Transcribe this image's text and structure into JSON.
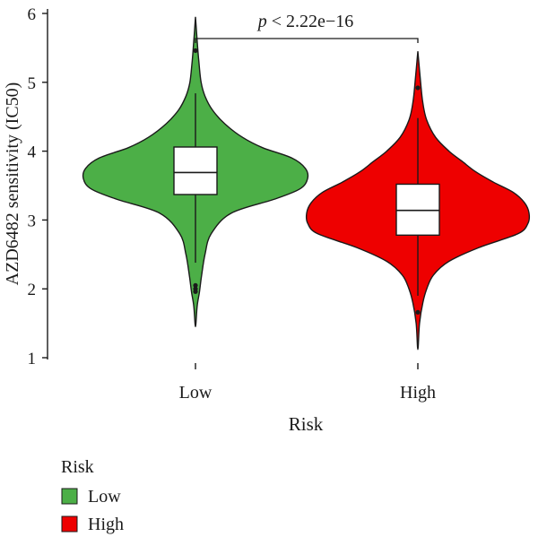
{
  "chart_data": {
    "type": "violin",
    "xlabel": "Risk",
    "ylabel": "AZD6482 sensitivity (IC50)",
    "ylim": [
      1,
      6
    ],
    "y_ticks": [
      1,
      2,
      3,
      4,
      5,
      6
    ],
    "categories": [
      "Low",
      "High"
    ],
    "annotation": {
      "p_prefix": "p",
      "p_rest": " < 2.22e−16"
    },
    "legend": {
      "title": "Risk",
      "position": "bottom-left",
      "entries": [
        "Low",
        "High"
      ]
    },
    "groups": [
      {
        "name": "Low",
        "color": "#4caf47",
        "box": {
          "q1": 3.37,
          "median": 3.69,
          "q3": 4.06,
          "whisker_low": 2.38,
          "whisker_high": 4.84
        },
        "outliers": [
          5.46,
          2.05,
          2.0,
          1.96
        ],
        "violin_range": [
          1.45,
          5.95
        ],
        "violin_profile": [
          [
            1.45,
            0.0
          ],
          [
            1.75,
            0.015
          ],
          [
            1.95,
            0.035
          ],
          [
            2.2,
            0.055
          ],
          [
            2.5,
            0.085
          ],
          [
            2.8,
            0.14
          ],
          [
            3.1,
            0.32
          ],
          [
            3.3,
            0.7
          ],
          [
            3.45,
            0.93
          ],
          [
            3.6,
            1.0
          ],
          [
            3.75,
            0.98
          ],
          [
            3.9,
            0.86
          ],
          [
            4.05,
            0.6
          ],
          [
            4.2,
            0.42
          ],
          [
            4.4,
            0.26
          ],
          [
            4.6,
            0.15
          ],
          [
            4.8,
            0.085
          ],
          [
            5.0,
            0.05
          ],
          [
            5.3,
            0.03
          ],
          [
            5.6,
            0.015
          ],
          [
            5.95,
            0.0
          ]
        ]
      },
      {
        "name": "High",
        "color": "#ee0000",
        "box": {
          "q1": 2.78,
          "median": 3.14,
          "q3": 3.52,
          "whisker_low": 1.9,
          "whisker_high": 4.48
        },
        "outliers": [
          4.92,
          1.66
        ],
        "violin_range": [
          1.12,
          5.45
        ],
        "violin_profile": [
          [
            1.12,
            0.0
          ],
          [
            1.5,
            0.015
          ],
          [
            1.8,
            0.045
          ],
          [
            2.0,
            0.08
          ],
          [
            2.2,
            0.14
          ],
          [
            2.4,
            0.28
          ],
          [
            2.6,
            0.55
          ],
          [
            2.8,
            0.9
          ],
          [
            2.95,
            0.99
          ],
          [
            3.1,
            1.0
          ],
          [
            3.25,
            0.96
          ],
          [
            3.4,
            0.86
          ],
          [
            3.55,
            0.68
          ],
          [
            3.7,
            0.52
          ],
          [
            3.85,
            0.4
          ],
          [
            4.0,
            0.28
          ],
          [
            4.2,
            0.16
          ],
          [
            4.45,
            0.08
          ],
          [
            4.7,
            0.045
          ],
          [
            5.0,
            0.025
          ],
          [
            5.45,
            0.0
          ]
        ]
      }
    ]
  }
}
